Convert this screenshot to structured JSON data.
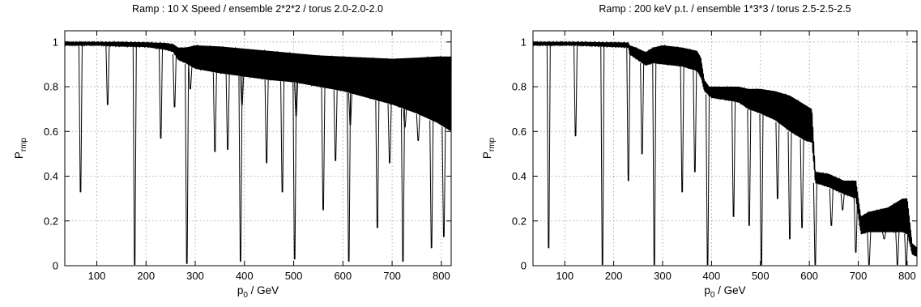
{
  "chart_data": [
    {
      "type": "line",
      "title": "Ramp : 10 X Speed / ensemble 2*2*2 / torus 2.0-2.0-2.0",
      "xlabel_base": "p",
      "xlabel_sub": "0",
      "xlabel_rest": " / GeV",
      "ylabel_base": "P",
      "ylabel_sub": "rmp",
      "xlim": [
        35,
        820
      ],
      "ylim": [
        0,
        1.05
      ],
      "xticks": [
        100,
        200,
        300,
        400,
        500,
        600,
        700,
        800
      ],
      "yticks": [
        0,
        0.2,
        0.4,
        0.6,
        0.8,
        1
      ],
      "ytick_labels": [
        "0",
        "0.2",
        "0.4",
        "0.6",
        "0.8",
        "1"
      ],
      "grid": true,
      "envelope": {
        "x": [
          35,
          100,
          150,
          200,
          240,
          255,
          265,
          280,
          300,
          350,
          400,
          450,
          500,
          550,
          600,
          650,
          700,
          750,
          790,
          820
        ],
        "upper": [
          1.0,
          1.0,
          1.0,
          0.998,
          0.995,
          0.99,
          0.975,
          0.975,
          0.985,
          0.98,
          0.97,
          0.96,
          0.95,
          0.94,
          0.935,
          0.93,
          0.925,
          0.93,
          0.935,
          0.935
        ],
        "lower": [
          0.985,
          0.985,
          0.98,
          0.978,
          0.965,
          0.955,
          0.92,
          0.905,
          0.88,
          0.86,
          0.845,
          0.83,
          0.82,
          0.8,
          0.78,
          0.75,
          0.72,
          0.68,
          0.64,
          0.6
        ]
      },
      "resonances": [
        {
          "x": 67,
          "y": 0.33
        },
        {
          "x": 122,
          "y": 0.72
        },
        {
          "x": 177,
          "y": 0.005
        },
        {
          "x": 230,
          "y": 0.57
        },
        {
          "x": 258,
          "y": 0.71
        },
        {
          "x": 283,
          "y": 0.01
        },
        {
          "x": 290,
          "y": 0.79
        },
        {
          "x": 340,
          "y": 0.51
        },
        {
          "x": 366,
          "y": 0.52
        },
        {
          "x": 392,
          "y": 0.02
        },
        {
          "x": 395,
          "y": 0.72
        },
        {
          "x": 445,
          "y": 0.46
        },
        {
          "x": 477,
          "y": 0.33
        },
        {
          "x": 502,
          "y": 0.03
        },
        {
          "x": 505,
          "y": 0.67
        },
        {
          "x": 560,
          "y": 0.25
        },
        {
          "x": 585,
          "y": 0.47
        },
        {
          "x": 612,
          "y": 0.02
        },
        {
          "x": 615,
          "y": 0.63
        },
        {
          "x": 670,
          "y": 0.17
        },
        {
          "x": 695,
          "y": 0.46
        },
        {
          "x": 722,
          "y": 0.02
        },
        {
          "x": 726,
          "y": 0.62
        },
        {
          "x": 753,
          "y": 0.56
        },
        {
          "x": 780,
          "y": 0.08
        },
        {
          "x": 805,
          "y": 0.13
        }
      ]
    },
    {
      "type": "line",
      "title": "Ramp : 200 keV p.t. / ensemble 1*3*3 / torus 2.5-2.5-2.5",
      "xlabel_base": "p",
      "xlabel_sub": "0",
      "xlabel_rest": " / GeV",
      "ylabel_base": "P",
      "ylabel_sub": "rmp",
      "xlim": [
        35,
        820
      ],
      "ylim": [
        0,
        1.05
      ],
      "xticks": [
        100,
        200,
        300,
        400,
        500,
        600,
        700,
        800
      ],
      "yticks": [
        0,
        0.2,
        0.4,
        0.6,
        0.8,
        1
      ],
      "ytick_labels": [
        "0",
        "0.2",
        "0.4",
        "0.6",
        "0.8",
        "1"
      ],
      "grid": true,
      "envelope": {
        "x": [
          35,
          120,
          200,
          230,
          232,
          245,
          265,
          280,
          300,
          340,
          370,
          378,
          385,
          395,
          400,
          430,
          455,
          475,
          500,
          530,
          560,
          590,
          605,
          612,
          640,
          670,
          695,
          705,
          720,
          760,
          790,
          800,
          810,
          820
        ],
        "upper": [
          1.0,
          1.0,
          0.998,
          0.997,
          0.985,
          0.975,
          0.955,
          0.975,
          0.985,
          0.975,
          0.96,
          0.93,
          0.83,
          0.8,
          0.8,
          0.8,
          0.8,
          0.79,
          0.79,
          0.78,
          0.76,
          0.72,
          0.7,
          0.42,
          0.41,
          0.38,
          0.38,
          0.22,
          0.24,
          0.26,
          0.3,
          0.3,
          0.1,
          0.08
        ],
        "lower": [
          0.985,
          0.985,
          0.978,
          0.975,
          0.945,
          0.925,
          0.895,
          0.905,
          0.9,
          0.89,
          0.87,
          0.84,
          0.78,
          0.76,
          0.75,
          0.74,
          0.73,
          0.7,
          0.68,
          0.65,
          0.6,
          0.56,
          0.55,
          0.37,
          0.35,
          0.32,
          0.3,
          0.14,
          0.15,
          0.15,
          0.15,
          0.14,
          0.05,
          0.04
        ]
      },
      "resonances": [
        {
          "x": 67,
          "y": 0.08
        },
        {
          "x": 122,
          "y": 0.58
        },
        {
          "x": 177,
          "y": 0.005
        },
        {
          "x": 230,
          "y": 0.38
        },
        {
          "x": 258,
          "y": 0.5
        },
        {
          "x": 283,
          "y": 0.005
        },
        {
          "x": 340,
          "y": 0.33
        },
        {
          "x": 366,
          "y": 0.42
        },
        {
          "x": 392,
          "y": 0.005
        },
        {
          "x": 445,
          "y": 0.22
        },
        {
          "x": 477,
          "y": 0.18
        },
        {
          "x": 502,
          "y": 0.005
        },
        {
          "x": 535,
          "y": 0.3
        },
        {
          "x": 560,
          "y": 0.12
        },
        {
          "x": 585,
          "y": 0.17
        },
        {
          "x": 612,
          "y": 0.005
        },
        {
          "x": 645,
          "y": 0.18
        },
        {
          "x": 668,
          "y": 0.25
        },
        {
          "x": 695,
          "y": 0.06
        },
        {
          "x": 722,
          "y": 0.005
        },
        {
          "x": 753,
          "y": 0.12
        },
        {
          "x": 780,
          "y": 0.005
        },
        {
          "x": 798,
          "y": 0.005
        }
      ]
    }
  ]
}
